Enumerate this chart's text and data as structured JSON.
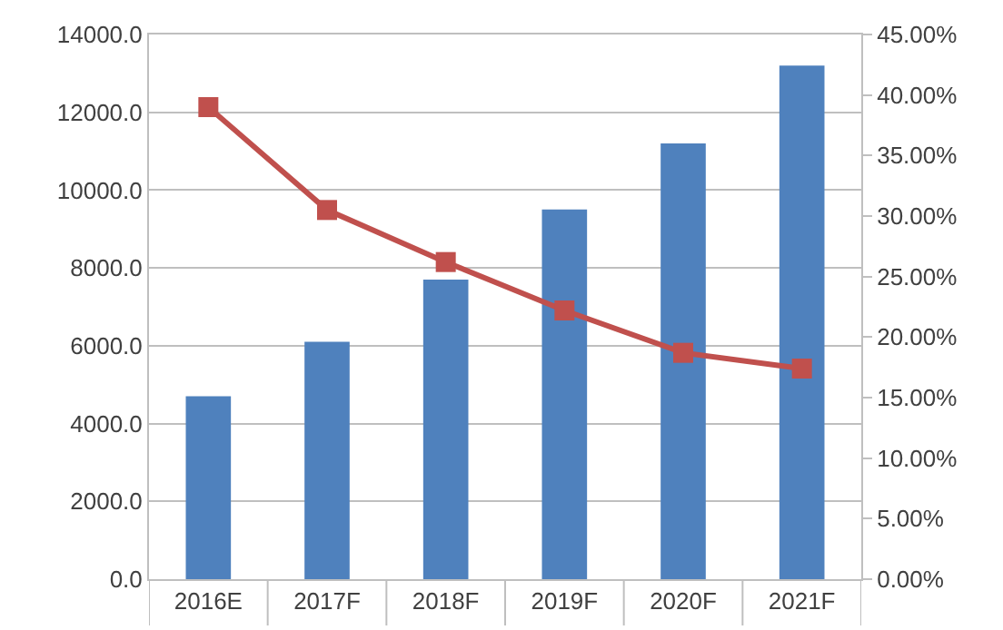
{
  "chart_data": {
    "type": "bar",
    "categories": [
      "2016E",
      "2017F",
      "2018F",
      "2019F",
      "2020F",
      "2021F"
    ],
    "series": [
      {
        "color": "#4f81bd",
        "values": [
          4700,
          6100,
          7700,
          9500,
          11200,
          13200
        ]
      },
      {
        "type": "line",
        "axis": "y2",
        "color": "#c0504d",
        "marker": "square",
        "values": [
          39.0,
          30.5,
          26.2,
          22.2,
          18.7,
          17.4
        ]
      }
    ],
    "ylim": [
      0,
      14000
    ],
    "yticks": [
      {
        "value": 0,
        "label": "0.0"
      },
      {
        "value": 2000,
        "label": "2000.0"
      },
      {
        "value": 4000,
        "label": "4000.0"
      },
      {
        "value": 6000,
        "label": "6000.0"
      },
      {
        "value": 8000,
        "label": "8000.0"
      },
      {
        "value": 10000,
        "label": "10000.0"
      },
      {
        "value": 12000,
        "label": "12000.0"
      },
      {
        "value": 14000,
        "label": "14000.0"
      }
    ],
    "y2lim": [
      0,
      45
    ],
    "y2ticks": [
      {
        "value": 0,
        "label": "0.00%"
      },
      {
        "value": 5,
        "label": "5.00%"
      },
      {
        "value": 10,
        "label": "10.00%"
      },
      {
        "value": 15,
        "label": "15.00%"
      },
      {
        "value": 20,
        "label": "20.00%"
      },
      {
        "value": 25,
        "label": "25.00%"
      },
      {
        "value": 30,
        "label": "30.00%"
      },
      {
        "value": 35,
        "label": "35.00%"
      },
      {
        "value": 40,
        "label": "40.00%"
      },
      {
        "value": 45,
        "label": "45.00%"
      }
    ],
    "grid": "y",
    "legend": false
  }
}
